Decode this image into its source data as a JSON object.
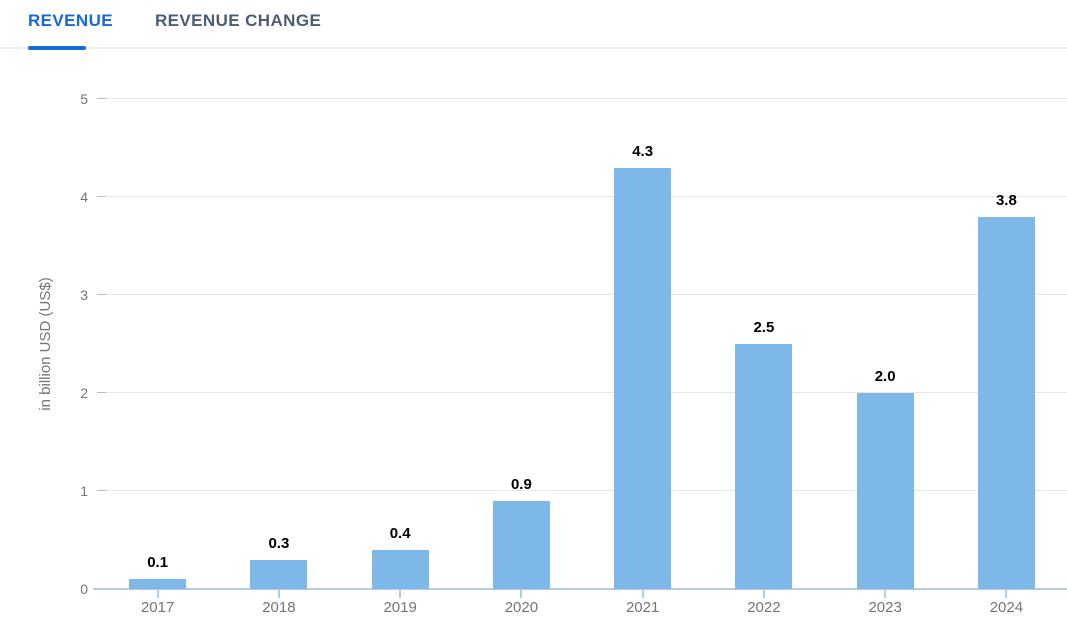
{
  "tabs": [
    {
      "label": "REVENUE",
      "active": true
    },
    {
      "label": "REVENUE CHANGE",
      "active": false
    }
  ],
  "chart_data": {
    "type": "bar",
    "categories": [
      "2017",
      "2018",
      "2019",
      "2020",
      "2021",
      "2022",
      "2023",
      "2024"
    ],
    "values": [
      0.1,
      0.3,
      0.4,
      0.9,
      4.3,
      2.5,
      2.0,
      3.8
    ],
    "value_labels": [
      "0.1",
      "0.3",
      "0.4",
      "0.9",
      "4.3",
      "2.5",
      "2.0",
      "3.8"
    ],
    "title": "",
    "xlabel": "",
    "ylabel": "in billion USD (US$)",
    "ylim": [
      0,
      5
    ],
    "yticks": [
      0,
      1,
      2,
      3,
      4,
      5
    ],
    "grid": true,
    "legend": "none"
  },
  "colors": {
    "tab_active": "#1767e0",
    "tab_inactive": "#4d5b75",
    "tab_divider": "#eef0f3",
    "bar": "#7db8e8",
    "axis_line": "#b3cce6",
    "gridline": "#e7e7e7",
    "tick_text": "#75757a",
    "value_label": "#000000"
  }
}
